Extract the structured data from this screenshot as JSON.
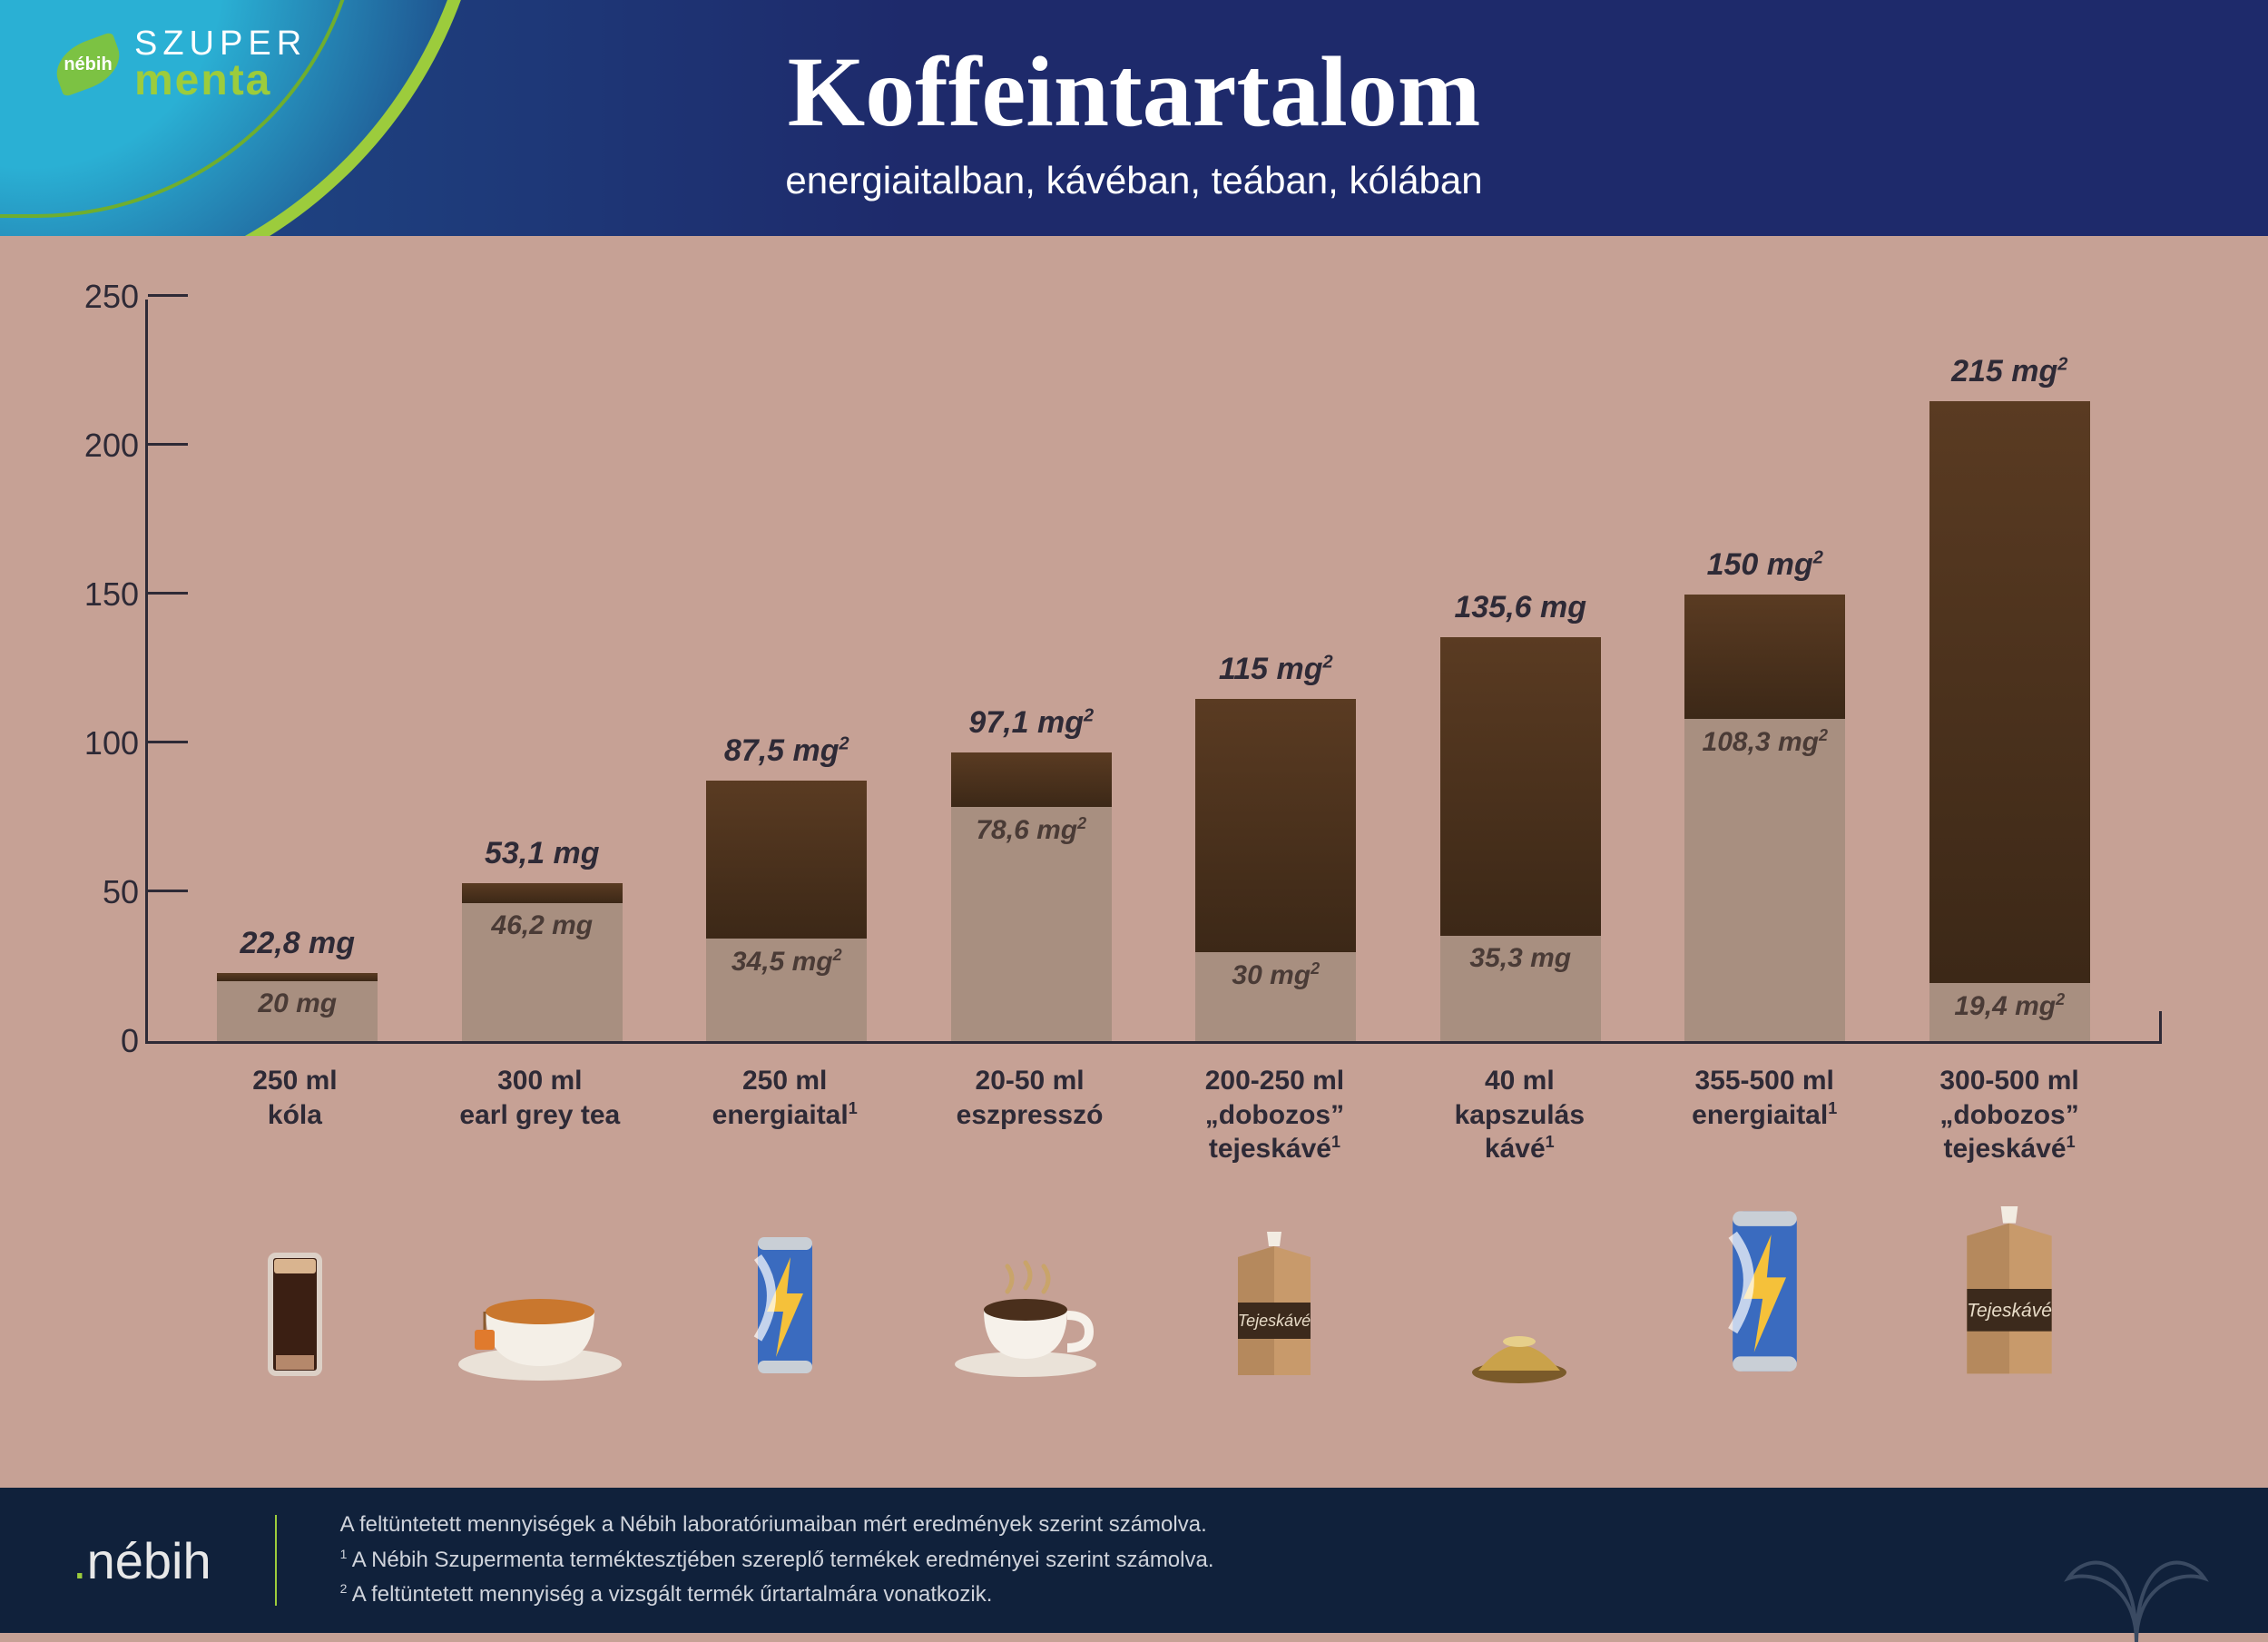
{
  "header": {
    "brand_line1": "SZUPER",
    "brand_line2": "menta",
    "brand_badge": "nébih",
    "title": "Koffeintartalom",
    "subtitle": "energiaitalban, kávéban, teában, kólában"
  },
  "chart": {
    "type": "stacked-range-bar",
    "y_axis": {
      "min": 0,
      "max": 250,
      "ticks": [
        0,
        50,
        100,
        150,
        200,
        250
      ],
      "tick_fontsize": 36,
      "axis_color": "#2e2a36"
    },
    "bar_colors": {
      "upper_gradient_from": "#5a3b22",
      "upper_gradient_to": "#3c2817",
      "lower_fill": "#a88f80"
    },
    "label_style": {
      "upper_fontsize": 34,
      "lower_fontsize": 30,
      "fontweight": 700,
      "italic": true,
      "upper_color": "#2e2a36",
      "lower_color": "#4a3b36"
    },
    "x_label_fontsize": 30,
    "background_color": "#c6a195",
    "items": [
      {
        "x_line1": "250 ml",
        "x_line2": "kóla",
        "upper_value": 22.8,
        "upper_label": "22,8 mg",
        "upper_sup": "",
        "lower_value": 20,
        "lower_label": "20 mg",
        "lower_sup": "",
        "icon": "cola-glass"
      },
      {
        "x_line1": "300 ml",
        "x_line2": "earl grey tea",
        "upper_value": 53.1,
        "upper_label": "53,1 mg",
        "upper_sup": "",
        "lower_value": 46.2,
        "lower_label": "46,2 mg",
        "lower_sup": "",
        "icon": "teacup"
      },
      {
        "x_line1": "250 ml",
        "x_line2": "energiaital",
        "x_sup": "1",
        "upper_value": 87.5,
        "upper_label": "87,5 mg",
        "upper_sup": "2",
        "lower_value": 34.5,
        "lower_label": "34,5 mg",
        "lower_sup": "2",
        "icon": "energy-can"
      },
      {
        "x_line1": "20-50 ml",
        "x_line2": "eszpresszó",
        "upper_value": 97.1,
        "upper_label": "97,1 mg",
        "upper_sup": "2",
        "lower_value": 78.6,
        "lower_label": "78,6 mg",
        "lower_sup": "2",
        "icon": "espresso-cup"
      },
      {
        "x_line1": "200-250 ml",
        "x_line2": "„dobozos” tejeskávé",
        "x_sup": "1",
        "upper_value": 115,
        "upper_label": "115 mg",
        "upper_sup": "2",
        "lower_value": 30,
        "lower_label": "30 mg",
        "lower_sup": "2",
        "icon": "milk-carton"
      },
      {
        "x_line1": "40 ml",
        "x_line2": "kapszulás kávé",
        "x_sup": "1",
        "upper_value": 135.6,
        "upper_label": "135,6 mg",
        "upper_sup": "",
        "lower_value": 35.3,
        "lower_label": "35,3 mg",
        "lower_sup": "",
        "icon": "capsule"
      },
      {
        "x_line1": "355-500 ml",
        "x_line2": "energiaital",
        "x_sup": "1",
        "upper_value": 150,
        "upper_label": "150 mg",
        "upper_sup": "2",
        "lower_value": 108.3,
        "lower_label": "108,3 mg",
        "lower_sup": "2",
        "icon": "energy-can-large"
      },
      {
        "x_line1": "300-500 ml",
        "x_line2": "„dobozos” tejeskávé",
        "x_sup": "1",
        "upper_value": 215,
        "upper_label": "215 mg",
        "upper_sup": "2",
        "lower_value": 19.4,
        "lower_label": "19,4 mg",
        "lower_sup": "2",
        "icon": "milk-carton-large"
      }
    ]
  },
  "footer": {
    "logo_text": "nébih",
    "notes": [
      "A feltüntetett mennyiségek a Nébih laboratóriumaiban mért eredmények szerint számolva.",
      "A Nébih Szupermenta terméktesztjében szereplő termékek eredményei szerint számolva.",
      "A feltüntetett mennyiség a vizsgált termék űrtartalmára vonatkozik."
    ],
    "note_sups": [
      "",
      "1",
      "2"
    ],
    "bg_color": "#10213b",
    "text_color": "#d0d4dc",
    "accent_color": "#9ccc3c"
  }
}
